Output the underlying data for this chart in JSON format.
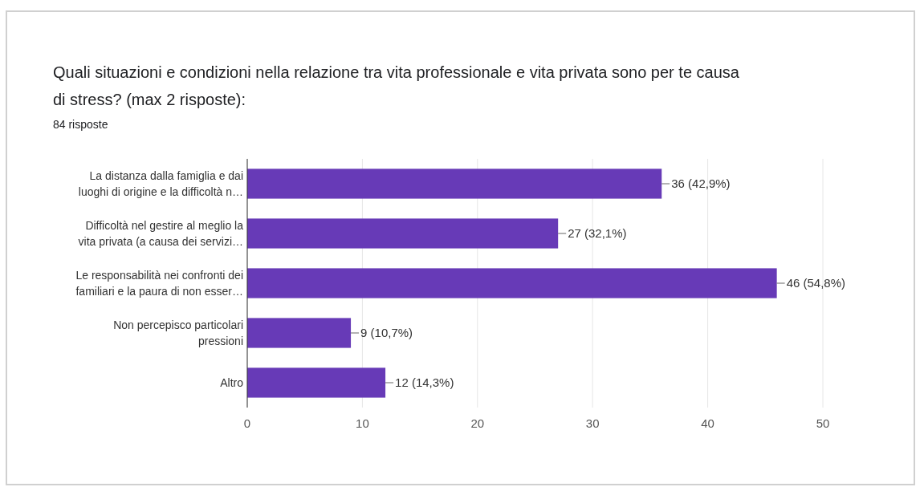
{
  "chart_data": {
    "type": "bar",
    "orientation": "horizontal",
    "title": "Quali situazioni e condizioni nella relazione tra vita professionale e vita privata sono per te causa di stress? (max 2 risposte):",
    "subtitle": "84 risposte",
    "categories": [
      "La distanza dalla famiglia e dai\nluoghi di origine e la difficoltà n…",
      "Difficoltà nel gestire al meglio la\nvita privata (a causa dei servizi…",
      "Le responsabilità nei confronti dei\nfamiliari e la paura di non esser…",
      "Non percepisco particolari\npressioni",
      "Altro"
    ],
    "values": [
      36,
      27,
      46,
      9,
      12
    ],
    "value_labels": [
      "36 (42,9%)",
      "27 (32,1%)",
      "46 (54,8%)",
      "9 (10,7%)",
      "12 (14,3%)"
    ],
    "color": "#673ab7",
    "xlim": [
      0,
      50
    ],
    "xticks": [
      0,
      10,
      20,
      30,
      40,
      50
    ],
    "grid": "x"
  }
}
